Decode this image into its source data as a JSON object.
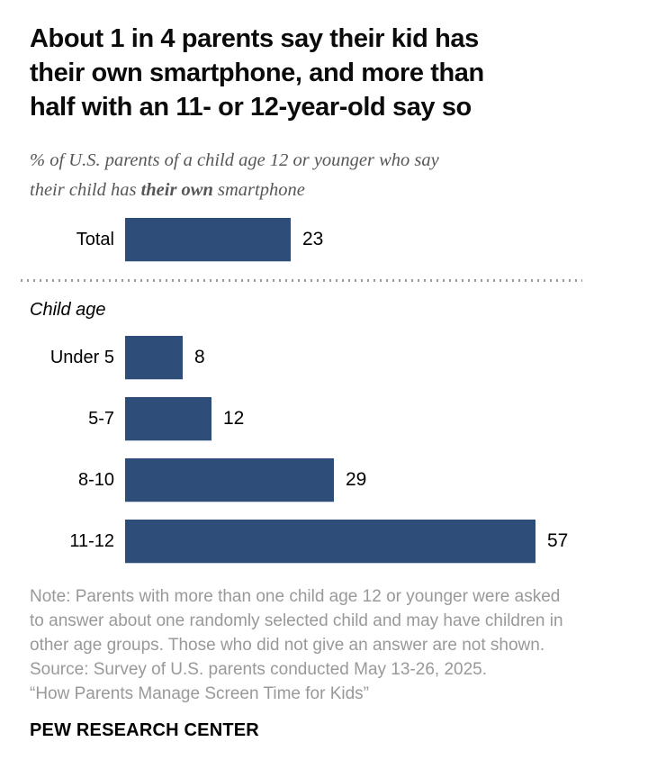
{
  "header": {
    "title_lines": [
      "About 1 in 4 parents say their kid has",
      "their own smartphone, and more than",
      "half with an 11- or 12-year-old say so"
    ],
    "subtitle_line1": "% of U.S. parents of a child age 12 or younger who say",
    "subtitle_line2_prefix": "their child has ",
    "subtitle_line2_bold": "their own",
    "subtitle_line2_suffix": " smartphone"
  },
  "chart_data": {
    "type": "bar",
    "orientation": "horizontal",
    "title": "About 1 in 4 parents say their kid has their own smartphone, and more than half with an 11- or 12-year-old say so",
    "subtitle": "% of U.S. parents of a child age 12 or younger who say their child has their own smartphone",
    "categories": [
      "Total",
      "Under 5",
      "5-7",
      "8-10",
      "11-12"
    ],
    "values": [
      23,
      8,
      12,
      29,
      57
    ],
    "divider_after_category": "Total",
    "section_label": "Child age",
    "xlim": [
      0,
      60
    ],
    "grid": false,
    "legend": false,
    "data_labels_shown": true,
    "bar_color": "#2E4D78"
  },
  "footer": {
    "note": "Note: Parents with more than one child age 12 or younger were asked to answer about one randomly selected child and may have children in other age groups. Those who did not give an answer are not shown.",
    "source": "Source: Survey of U.S. parents conducted May 13-26, 2025.",
    "report": "“How Parents Manage Screen Time for Kids”",
    "brand": "PEW RESEARCH CENTER"
  },
  "colors": {
    "bar": "#2E4D78",
    "title_text": "#0B0B0B",
    "subtitle_text": "#57575A",
    "note_text": "#999999",
    "divider_dots": "#9B9B9B"
  }
}
